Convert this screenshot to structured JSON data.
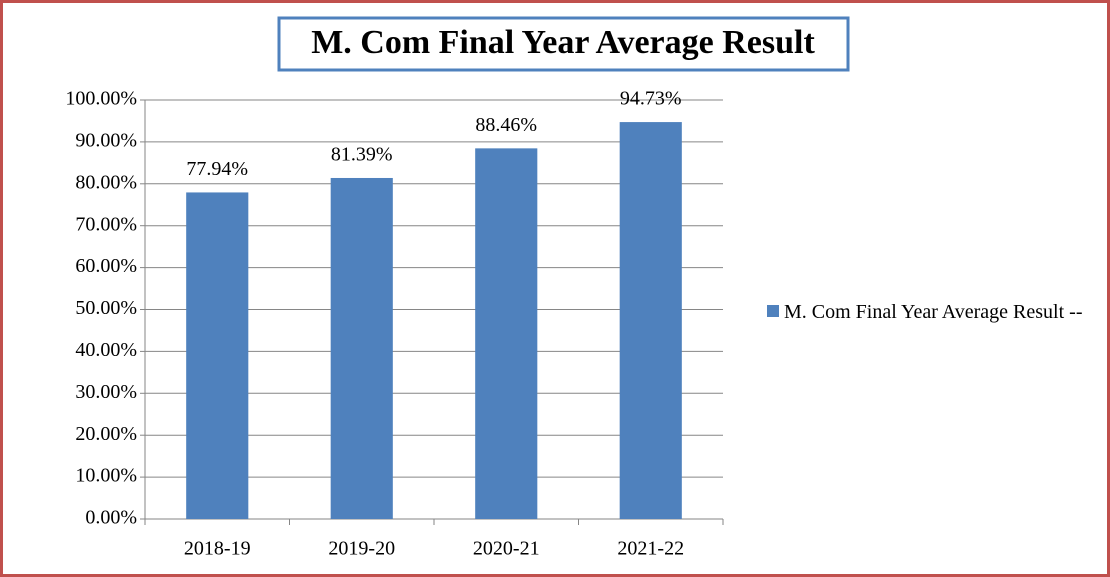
{
  "chart_data": {
    "type": "bar",
    "title": "M. Com Final Year Average Result",
    "categories": [
      "2018-19",
      "2019-20",
      "2020-21",
      "2021-22"
    ],
    "series": [
      {
        "name": "M. Com Final Year Average Result --",
        "color": "#4f81bd",
        "values": [
          77.94,
          81.39,
          88.46,
          94.73
        ],
        "value_labels": [
          "77.94%",
          "81.39%",
          "88.46%",
          "94.73%"
        ]
      }
    ],
    "ylim": [
      0,
      100
    ],
    "yticks": [
      {
        "value": 0,
        "label": "0.00%"
      },
      {
        "value": 10,
        "label": "10.00%"
      },
      {
        "value": 20,
        "label": "20.00%"
      },
      {
        "value": 30,
        "label": "30.00%"
      },
      {
        "value": 40,
        "label": "40.00%"
      },
      {
        "value": 50,
        "label": "50.00%"
      },
      {
        "value": 60,
        "label": "60.00%"
      },
      {
        "value": 70,
        "label": "70.00%"
      },
      {
        "value": 80,
        "label": "80.00%"
      },
      {
        "value": 90,
        "label": "90.00%"
      },
      {
        "value": 100,
        "label": "100.00%"
      }
    ],
    "grid": true,
    "legend": "right"
  }
}
